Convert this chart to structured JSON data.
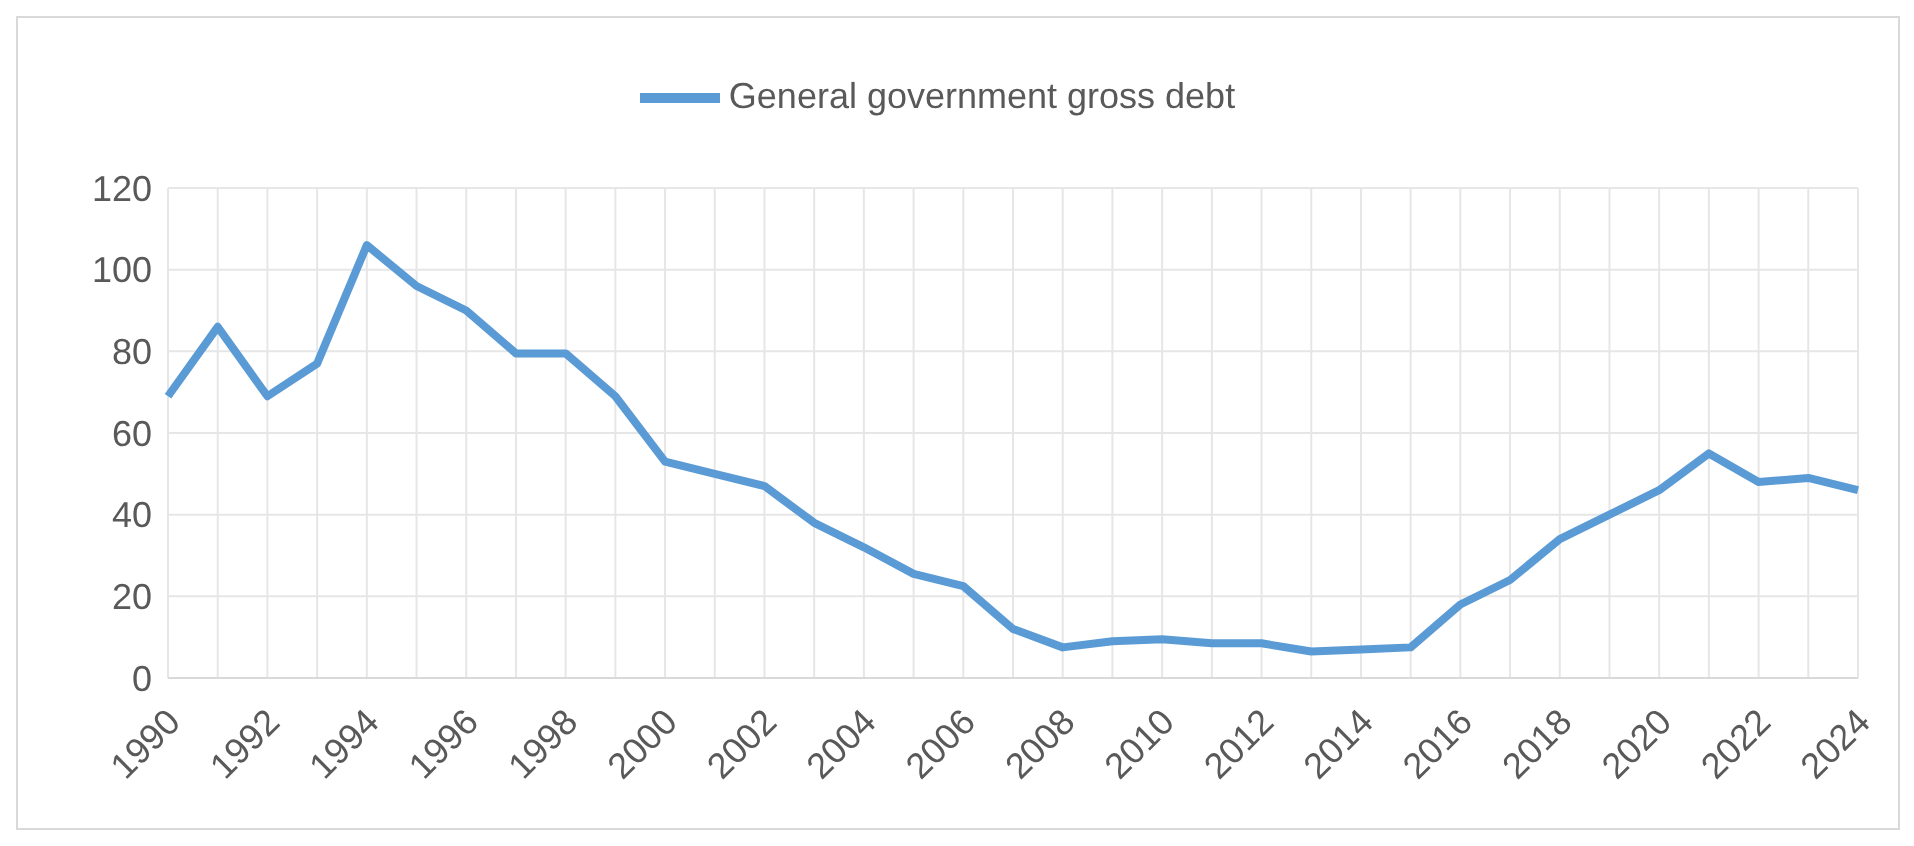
{
  "chart_data": {
    "type": "line",
    "categories": [
      "1990",
      null,
      "1992",
      null,
      "1994",
      null,
      "1996",
      null,
      "1998",
      null,
      "2000",
      null,
      "2002",
      null,
      "2004",
      null,
      "2006",
      null,
      "2008",
      null,
      "2010",
      null,
      "2012",
      null,
      "2014",
      null,
      "2016",
      null,
      "2018",
      null,
      "2020",
      null,
      "2022",
      null,
      "2024"
    ],
    "series": [
      {
        "name": "General government gross debt",
        "color": "#5b9bd5",
        "values": [
          69,
          86,
          69,
          77,
          106,
          96,
          90,
          79.5,
          79.5,
          69,
          53,
          50,
          47,
          38,
          32,
          25.5,
          22.5,
          12,
          7.5,
          9,
          9.5,
          8.5,
          8.5,
          6.5,
          7,
          7.5,
          18,
          24,
          34,
          40,
          46,
          55,
          48,
          49,
          46
        ]
      }
    ],
    "ylim": [
      0,
      120
    ],
    "yticks": [
      0,
      20,
      40,
      60,
      80,
      100,
      120
    ],
    "grid": true,
    "legend": "top",
    "marker": "none",
    "line_style": "solid"
  }
}
